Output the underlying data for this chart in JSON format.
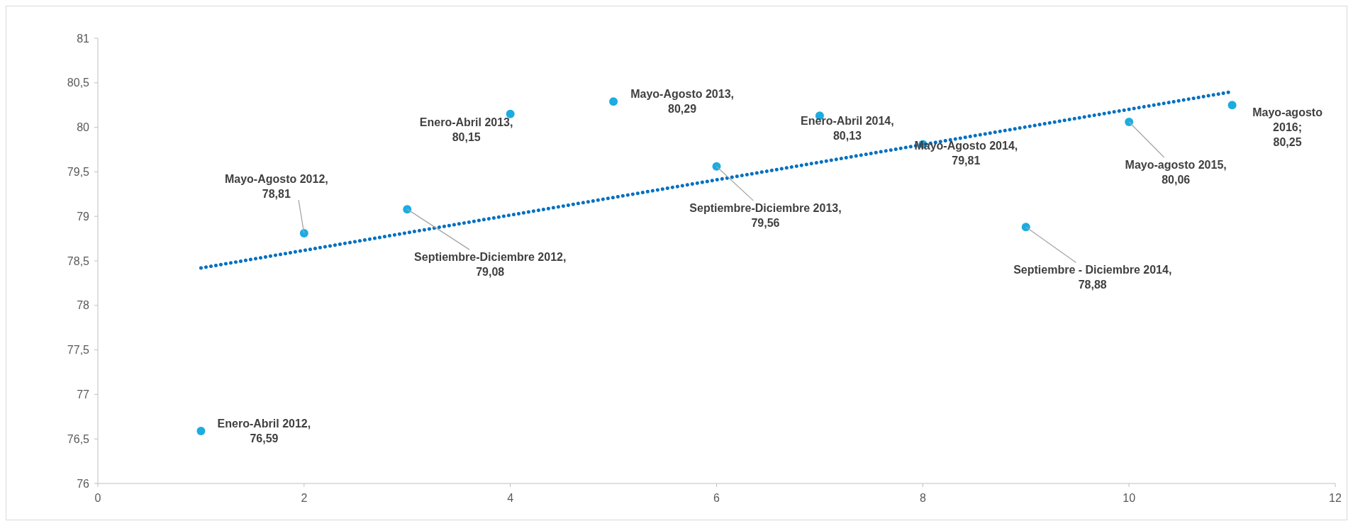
{
  "chart_data": {
    "type": "scatter",
    "xlim": [
      0,
      12
    ],
    "xticks": [
      0,
      2,
      4,
      6,
      8,
      10,
      12
    ],
    "ylim": [
      76,
      81
    ],
    "yticks": [
      76,
      {
        "value": 76.5,
        "label": "76,5"
      },
      77,
      {
        "value": 77.5,
        "label": "77,5"
      },
      78,
      {
        "value": 78.5,
        "label": "78,5"
      },
      79,
      {
        "value": 79.5,
        "label": "79,5"
      },
      80,
      {
        "value": 80.5,
        "label": "80,5"
      },
      81
    ],
    "grid": false,
    "marker": "circle",
    "series": [
      {
        "color": "#1cace0",
        "x": [
          1,
          2,
          3,
          4,
          5,
          6,
          7,
          8,
          9,
          10,
          11
        ],
        "values": [
          76.59,
          78.81,
          79.08,
          80.15,
          80.29,
          79.56,
          80.13,
          79.81,
          78.88,
          80.06,
          80.25
        ],
        "value_labels": [
          "Enero-Abril 2012,\n76,59",
          "Mayo-Agosto 2012,\n78,81",
          "Septiembre-Diciembre 2012,\n79,08",
          "Enero-Abril 2013,\n80,15",
          "Mayo-Agosto 2013,\n80,29",
          "Septiembre-Diciembre 2013,\n79,56",
          "Enero-Abril 2014,\n80,13",
          "Mayo-Agosto 2014,\n79,81",
          "Septiembre - Diciembre 2014,\n78,88",
          "Mayo-agosto 2015,\n80,06",
          "Mayo-agosto\n2016;\n80,25"
        ]
      },
      {
        "type": "line",
        "color": "#0070c0",
        "line_style": "dotted",
        "marker": "none",
        "x": [
          1,
          11
        ],
        "values": [
          78.42,
          80.4
        ]
      }
    ]
  }
}
